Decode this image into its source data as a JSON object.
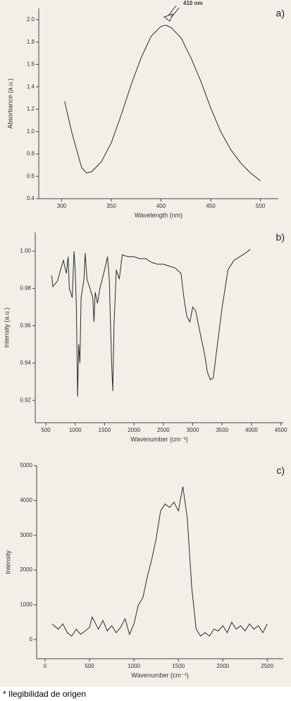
{
  "chart_data": [
    {
      "type": "line",
      "panel_label": "a)",
      "annotation": "410 nm",
      "xlabel": "Wavelength (nm)",
      "ylabel": "Absorbance (a.u.)",
      "color": "#2b2b2b",
      "x": [
        303,
        310,
        320,
        325,
        330,
        340,
        350,
        360,
        370,
        380,
        390,
        400,
        405,
        410,
        420,
        430,
        440,
        450,
        460,
        470,
        480,
        490,
        500
      ],
      "values": [
        1.27,
        1.0,
        0.68,
        0.63,
        0.64,
        0.73,
        0.9,
        1.15,
        1.42,
        1.66,
        1.85,
        1.94,
        1.95,
        1.93,
        1.84,
        1.66,
        1.45,
        1.21,
        1.0,
        0.84,
        0.72,
        0.63,
        0.56
      ],
      "xlim": [
        277,
        518
      ],
      "xticks": [
        300,
        350,
        400,
        450,
        500
      ],
      "ylim": [
        0.4,
        2.1
      ],
      "yticks": [
        0.4,
        0.6,
        0.8,
        {
          "value": 1,
          "label": "1.0"
        },
        1.2,
        1.4,
        1.6,
        1.8,
        {
          "value": 2,
          "label": "2.0"
        }
      ]
    },
    {
      "type": "line",
      "panel_label": "b)",
      "xlabel": "Wavenumber (cm⁻¹)",
      "ylabel": "Intensity (a.u.)",
      "color": "#2b2b2b",
      "x": [
        600,
        620,
        700,
        750,
        800,
        850,
        880,
        900,
        950,
        980,
        1000,
        1020,
        1040,
        1060,
        1080,
        1100,
        1150,
        1170,
        1200,
        1250,
        1300,
        1320,
        1340,
        1380,
        1420,
        1500,
        1550,
        1580,
        1620,
        1640,
        1660,
        1700,
        1750,
        1800,
        1900,
        2000,
        2100,
        2200,
        2300,
        2400,
        2500,
        2600,
        2700,
        2800,
        2850,
        2900,
        2950,
        3000,
        3050,
        3100,
        3200,
        3250,
        3300,
        3350,
        3400,
        3500,
        3600,
        3700,
        3800,
        3900,
        3980
      ],
      "values": [
        0.987,
        0.981,
        0.984,
        0.99,
        0.995,
        0.988,
        0.997,
        0.98,
        0.975,
        1.0,
        0.99,
        0.97,
        0.922,
        0.95,
        0.94,
        0.975,
        0.985,
        0.999,
        0.985,
        0.98,
        0.975,
        0.962,
        0.978,
        0.972,
        0.98,
        0.99,
        0.997,
        0.985,
        0.94,
        0.925,
        0.96,
        0.99,
        0.985,
        0.998,
        0.997,
        0.997,
        0.996,
        0.996,
        0.994,
        0.993,
        0.993,
        0.992,
        0.991,
        0.988,
        0.975,
        0.965,
        0.962,
        0.97,
        0.968,
        0.96,
        0.945,
        0.935,
        0.931,
        0.932,
        0.945,
        0.97,
        0.99,
        0.995,
        0.997,
        0.999,
        1.001
      ],
      "xlim": [
        320,
        4540
      ],
      "xticks": [
        500,
        1000,
        1500,
        2000,
        2500,
        3000,
        3500,
        4000,
        4500
      ],
      "ylim": [
        0.908,
        1.01
      ],
      "yticks": [
        0.92,
        0.94,
        0.96,
        0.98,
        {
          "value": 1,
          "label": "1.00"
        }
      ]
    },
    {
      "type": "line",
      "panel_label": "c)",
      "xlabel": "Wavenumber (cm⁻¹)",
      "ylabel": "Intensity",
      "color": "#2b2b2b",
      "x": [
        80,
        100,
        150,
        200,
        250,
        300,
        350,
        400,
        450,
        500,
        530,
        560,
        600,
        650,
        700,
        750,
        800,
        850,
        900,
        950,
        1000,
        1050,
        1100,
        1150,
        1200,
        1250,
        1300,
        1350,
        1400,
        1450,
        1500,
        1550,
        1600,
        1650,
        1700,
        1750,
        1800,
        1850,
        1900,
        1950,
        2000,
        2050,
        2100,
        2150,
        2200,
        2250,
        2300,
        2350,
        2400,
        2450,
        2500
      ],
      "values": [
        450,
        400,
        300,
        450,
        200,
        100,
        300,
        150,
        250,
        350,
        650,
        500,
        300,
        550,
        250,
        400,
        200,
        350,
        600,
        150,
        450,
        1000,
        1200,
        1800,
        2300,
        2900,
        3700,
        3900,
        3800,
        3950,
        3700,
        4400,
        3500,
        1500,
        300,
        100,
        200,
        100,
        300,
        250,
        400,
        200,
        500,
        300,
        400,
        250,
        450,
        300,
        400,
        200,
        450
      ],
      "xlim": [
        -95,
        2680
      ],
      "xticks": [
        0,
        500,
        1000,
        1500,
        2000,
        2500
      ],
      "ylim": [
        -550,
        5000
      ],
      "yticks": [
        0,
        1000,
        2000,
        3000,
        4000,
        5000
      ]
    }
  ],
  "footnote": "* Ilegibilidad de origen"
}
